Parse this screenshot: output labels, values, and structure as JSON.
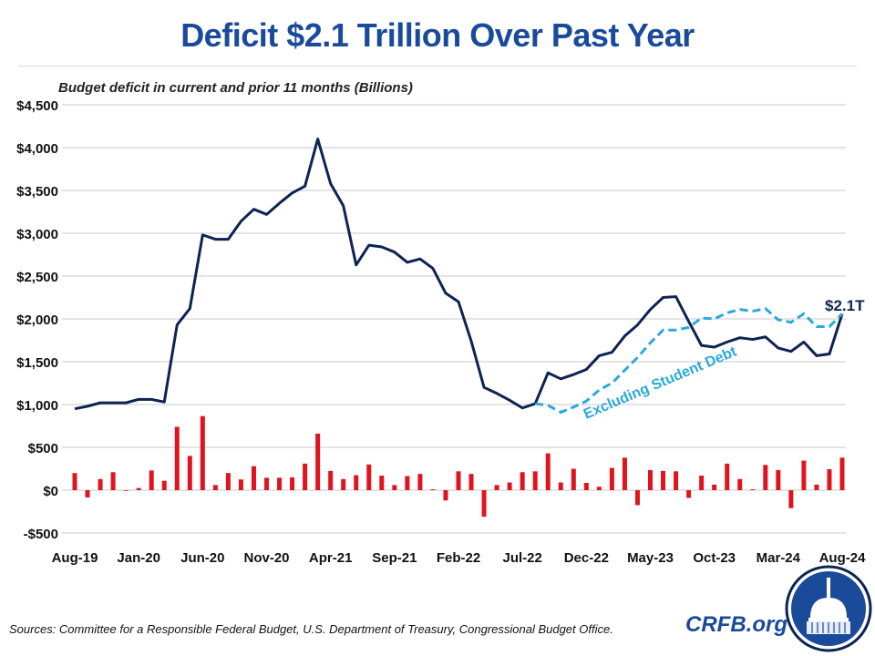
{
  "title": "Deficit $2.1 Trillion Over Past Year",
  "footer": {
    "sources": "Sources: Committee for a Responsible Federal Budget, U.S. Department of Treasury, Congressional Budget Office.",
    "brand": "CRFB.org"
  },
  "colors": {
    "title": "#1a4a9a",
    "total_line": "#0d2352",
    "excluding_line": "#29a9dc",
    "bars": "#e0141e",
    "grid": "#c8c8c8"
  },
  "chart_data": {
    "type": "line+bar",
    "title": "Deficit $2.1 Trillion Over Past Year",
    "ylabel": "Budget deficit in current and prior 11 months (Billions)",
    "ylim": [
      -500,
      4500
    ],
    "yticks": [
      4500,
      4000,
      3500,
      3000,
      2500,
      2000,
      1500,
      1000,
      500,
      0,
      -500
    ],
    "ytick_labels": [
      "$4,500",
      "$4,000",
      "$3,500",
      "$3,000",
      "$2,500",
      "$2,000",
      "$1,500",
      "$1,000",
      "$500",
      "$0",
      "-$500"
    ],
    "grid": true,
    "x_start": "Aug-19",
    "x_end": "Aug-24",
    "xtick_labels": [
      "Aug-19",
      "Jan-20",
      "Jun-20",
      "Nov-20",
      "Apr-21",
      "Sep-21",
      "Feb-22",
      "Jul-22",
      "Dec-22",
      "May-23",
      "Oct-23",
      "Mar-24",
      "Aug-24"
    ],
    "series": [
      {
        "type": "line",
        "values": [
          950,
          980,
          1020,
          1020,
          1020,
          1060,
          1060,
          1030,
          1930,
          2120,
          2980,
          2930,
          2930,
          3140,
          3280,
          3220,
          3350,
          3470,
          3550,
          4100,
          3580,
          3320,
          2630,
          2860,
          2840,
          2780,
          2660,
          2700,
          2590,
          2300,
          2200,
          1740,
          1200,
          1130,
          1050,
          960,
          1010,
          1370,
          1300,
          1350,
          1410,
          1570,
          1610,
          1800,
          1930,
          2110,
          2250,
          2260,
          1970,
          1690,
          1670,
          1730,
          1780,
          1760,
          1790,
          1660,
          1620,
          1730,
          1570,
          1590,
          2060
        ]
      },
      {
        "type": "line",
        "style": "dashed",
        "name": "Excluding Student Debt",
        "start": "Aug-22",
        "values": [
          1010,
          990,
          910,
          970,
          1040,
          1170,
          1250,
          1400,
          1550,
          1720,
          1870,
          1870,
          1900,
          2010,
          2000,
          2070,
          2110,
          2090,
          2120,
          1990,
          1960,
          2060,
          1910,
          1910,
          2060
        ]
      },
      {
        "type": "bar",
        "values": [
          200,
          -85,
          130,
          210,
          0,
          25,
          230,
          110,
          740,
          400,
          865,
          60,
          200,
          125,
          280,
          145,
          145,
          150,
          310,
          660,
          225,
          130,
          175,
          300,
          170,
          60,
          165,
          190,
          10,
          -120,
          220,
          190,
          -310,
          60,
          90,
          210,
          220,
          430,
          90,
          250,
          85,
          40,
          260,
          380,
          -175,
          235,
          225,
          220,
          -90,
          170,
          65,
          310,
          130,
          10,
          295,
          235,
          -210,
          345,
          65,
          245,
          380
        ]
      }
    ],
    "annotations": {
      "end_label": "$2.1T",
      "excluding_label": "Excluding Student Debt"
    }
  }
}
